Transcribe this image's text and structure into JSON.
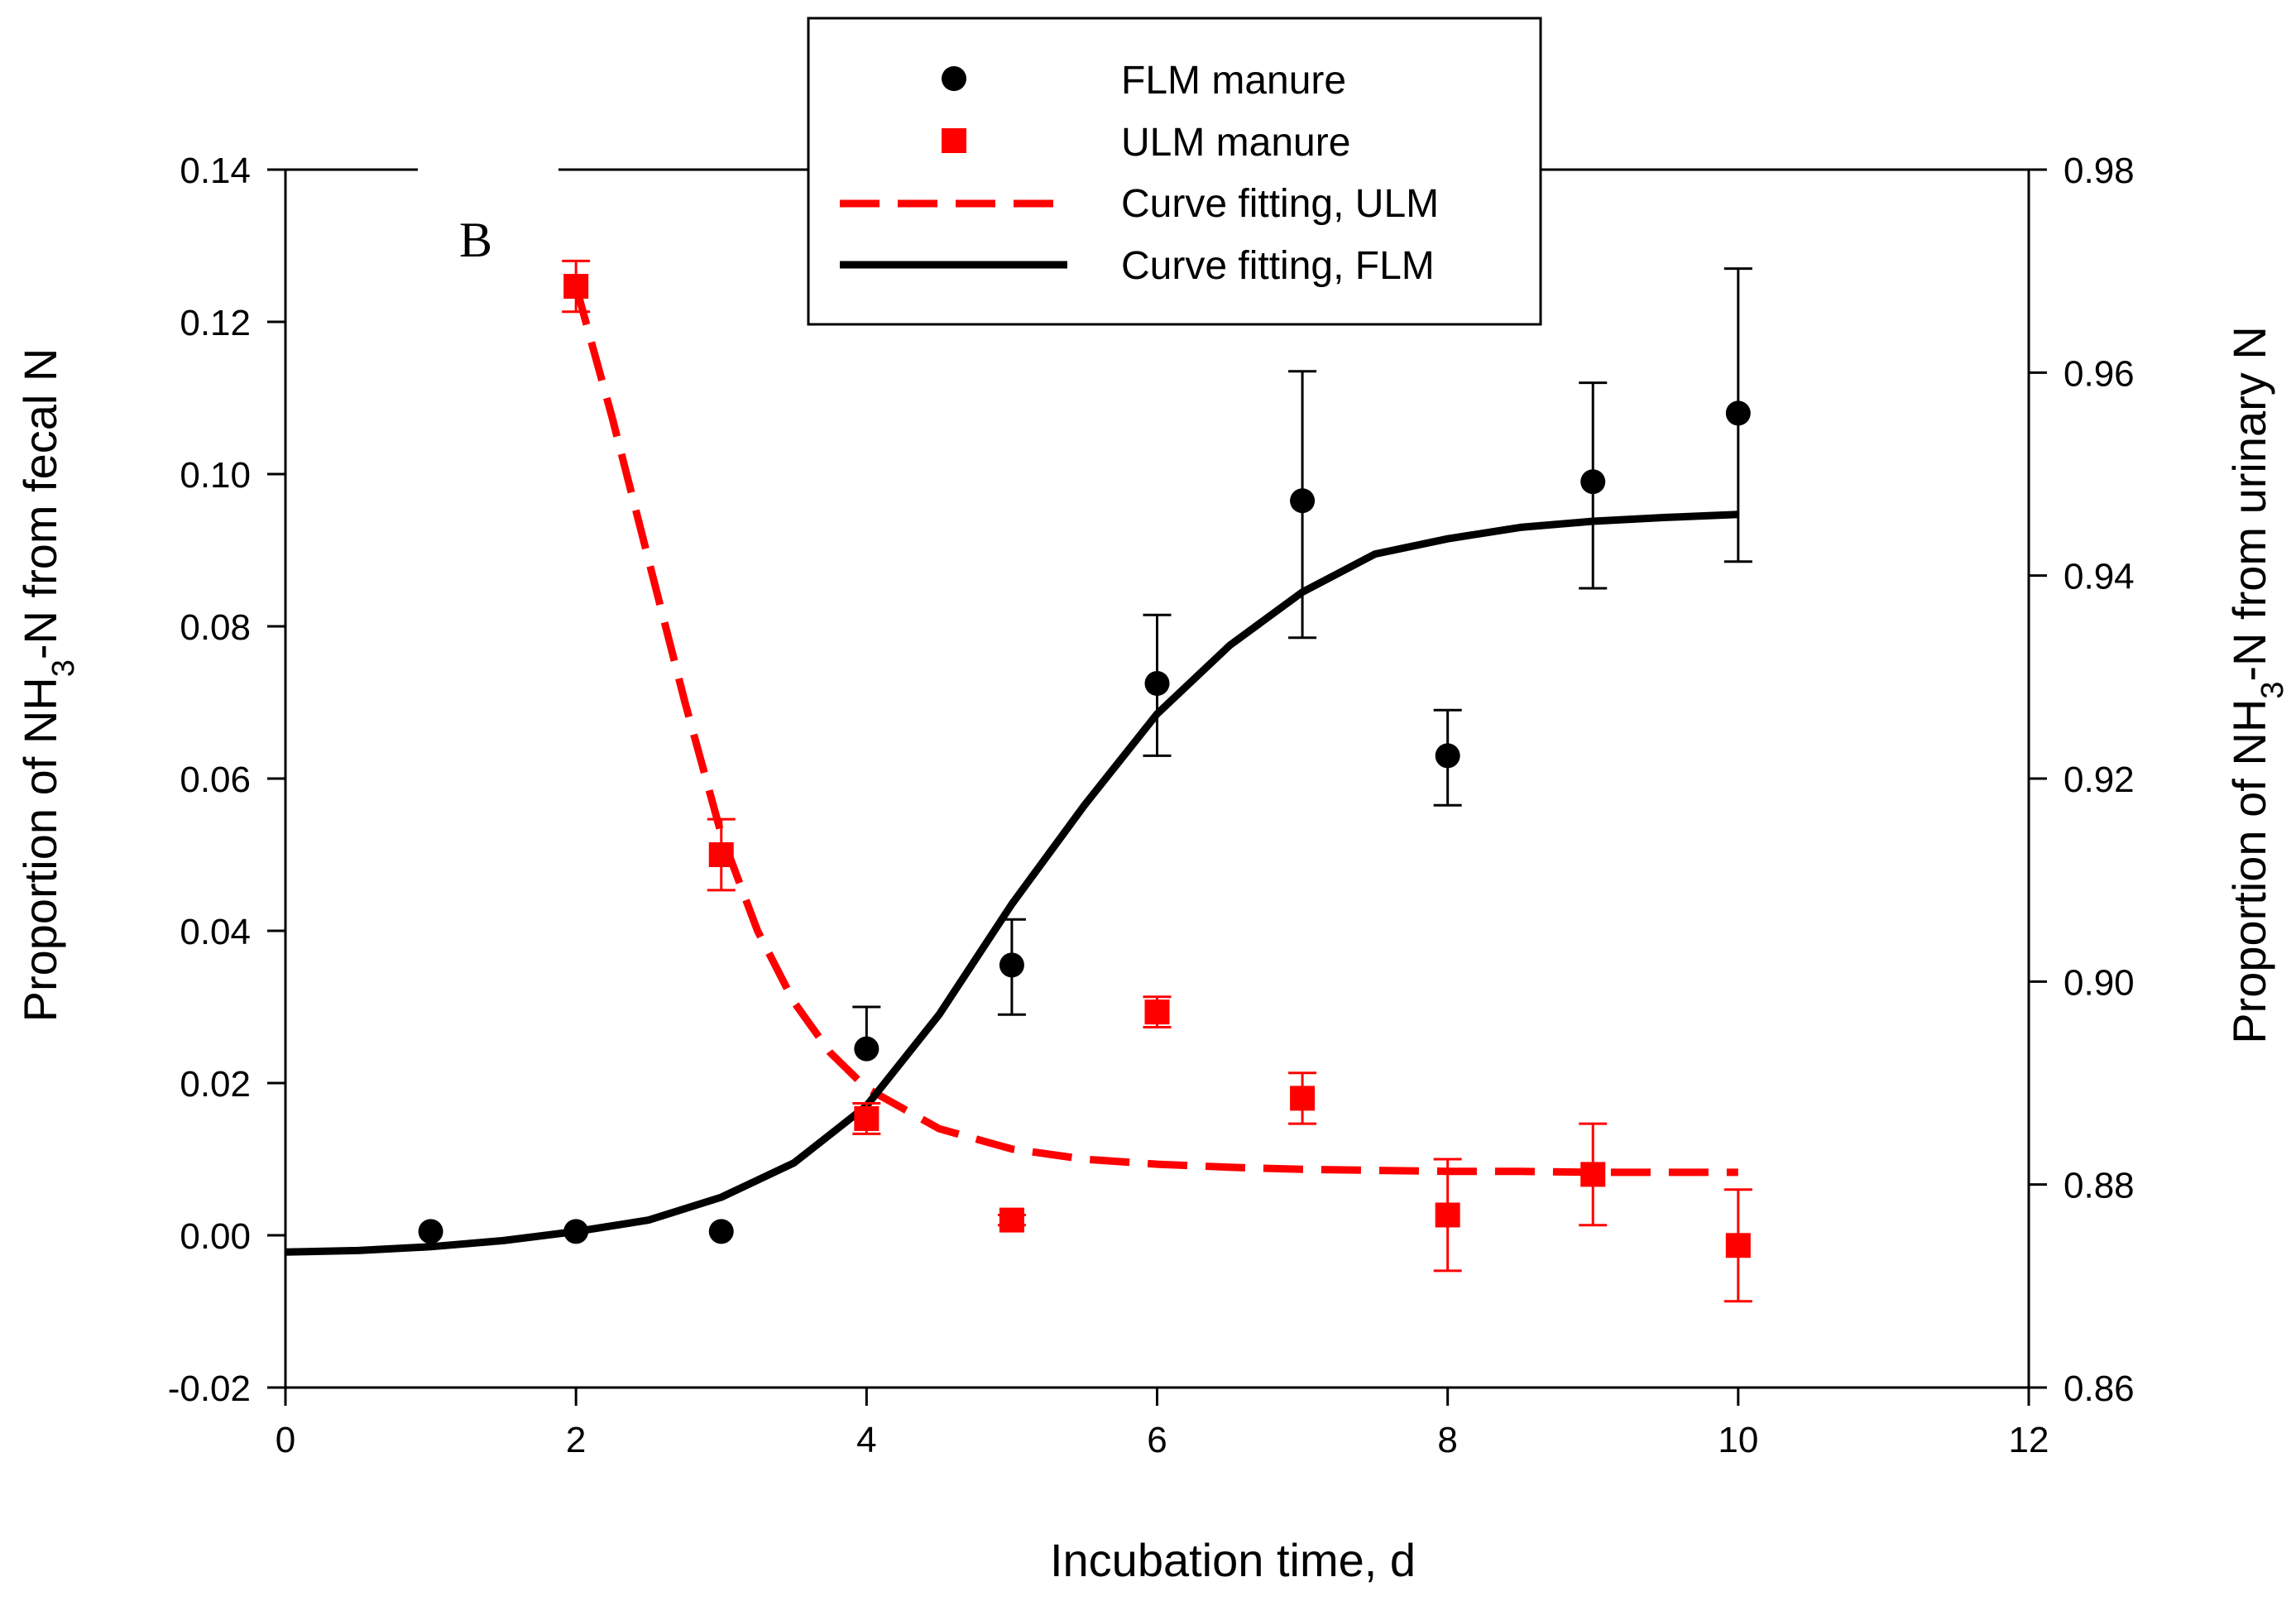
{
  "chart_data": {
    "type": "scatter",
    "panel_label": "B",
    "xlabel": "Incubation time, d",
    "ylabel_left": {
      "prefix": "Proportion of NH",
      "sub": "3",
      "suffix": "-N from fecal N"
    },
    "ylabel_right": {
      "prefix": "Proportion of NH",
      "sub": "3",
      "suffix": "-N from urinary N"
    },
    "xlim": [
      0,
      12
    ],
    "ylim_left": [
      -0.02,
      0.14
    ],
    "ylim_right": [
      0.86,
      0.98
    ],
    "x_ticks": [
      "0",
      "2",
      "4",
      "6",
      "8",
      "10",
      "12"
    ],
    "x_tick_values": [
      0,
      2,
      4,
      6,
      8,
      10,
      12
    ],
    "y_left_ticks": [
      "-0.02",
      "0.00",
      "0.02",
      "0.04",
      "0.06",
      "0.08",
      "0.10",
      "0.12",
      "0.14"
    ],
    "y_left_tick_values": [
      -0.02,
      0,
      0.02,
      0.04,
      0.06,
      0.08,
      0.1,
      0.12,
      0.14
    ],
    "y_right_ticks": [
      "0.86",
      "0.88",
      "0.90",
      "0.92",
      "0.94",
      "0.96",
      "0.98"
    ],
    "y_right_tick_values": [
      0.86,
      0.88,
      0.9,
      0.92,
      0.94,
      0.96,
      0.98
    ],
    "series": [
      {
        "name": "FLM manure",
        "axis": "left",
        "marker": "circle",
        "color": "#000000",
        "x": [
          1,
          2,
          3,
          4,
          5,
          6,
          7,
          8,
          9,
          10
        ],
        "y": [
          0.0005,
          0.0005,
          0.0005,
          0.0245,
          0.0355,
          0.0725,
          0.0965,
          0.063,
          0.099,
          0.108
        ],
        "err_up": [
          null,
          null,
          null,
          0.0055,
          0.006,
          0.009,
          0.017,
          0.006,
          0.013,
          0.019
        ],
        "err_down": [
          null,
          null,
          null,
          null,
          0.0065,
          0.0095,
          0.018,
          0.0065,
          0.014,
          0.0195
        ]
      },
      {
        "name": "ULM manure",
        "axis": "right",
        "marker": "square",
        "color": "#ff0000",
        "x": [
          2,
          3,
          4,
          5,
          6,
          7,
          8,
          9,
          10
        ],
        "y": [
          0.9685,
          0.9125,
          0.8865,
          0.8765,
          0.897,
          0.8885,
          0.877,
          0.881,
          0.874
        ],
        "err_up": [
          0.0025,
          0.0035,
          0.0015,
          0.0005,
          0.0015,
          0.0025,
          0.0055,
          0.005,
          0.0055
        ],
        "err_down": [
          0.0025,
          0.0035,
          0.0015,
          0.0005,
          0.0015,
          0.0025,
          0.0055,
          0.005,
          0.0055
        ]
      }
    ],
    "fits": [
      {
        "name": "Curve fitting, ULM",
        "axis": "right",
        "style": "dashed",
        "color": "#ff0000",
        "x": [
          2,
          2.25,
          2.5,
          2.75,
          3,
          3.25,
          3.5,
          3.75,
          4,
          4.5,
          5,
          5.5,
          6,
          6.5,
          7,
          7.5,
          8,
          8.5,
          9,
          9.5,
          10
        ],
        "y": [
          0.9685,
          0.9555,
          0.9415,
          0.9275,
          0.9145,
          0.905,
          0.898,
          0.893,
          0.8895,
          0.8855,
          0.8835,
          0.8825,
          0.882,
          0.8817,
          0.8815,
          0.8814,
          0.8813,
          0.8813,
          0.8812,
          0.8812,
          0.8812
        ]
      },
      {
        "name": "Curve fitting, FLM",
        "axis": "left",
        "style": "solid",
        "color": "#000000",
        "x": [
          0,
          0.5,
          1,
          1.5,
          2,
          2.5,
          3,
          3.5,
          4,
          4.5,
          5,
          5.5,
          6,
          6.5,
          7,
          7.5,
          8,
          8.5,
          9,
          9.5,
          10
        ],
        "y": [
          -0.0022,
          -0.002,
          -0.0015,
          -0.0007,
          0.0005,
          0.002,
          0.005,
          0.0095,
          0.017,
          0.029,
          0.0435,
          0.0565,
          0.0685,
          0.0775,
          0.0845,
          0.0895,
          0.0915,
          0.093,
          0.0938,
          0.0943,
          0.0947
        ]
      }
    ],
    "legend": {
      "placement": "top-center",
      "entries": [
        "FLM manure",
        "ULM manure",
        "Curve fitting, ULM",
        "Curve fitting, FLM"
      ]
    }
  }
}
